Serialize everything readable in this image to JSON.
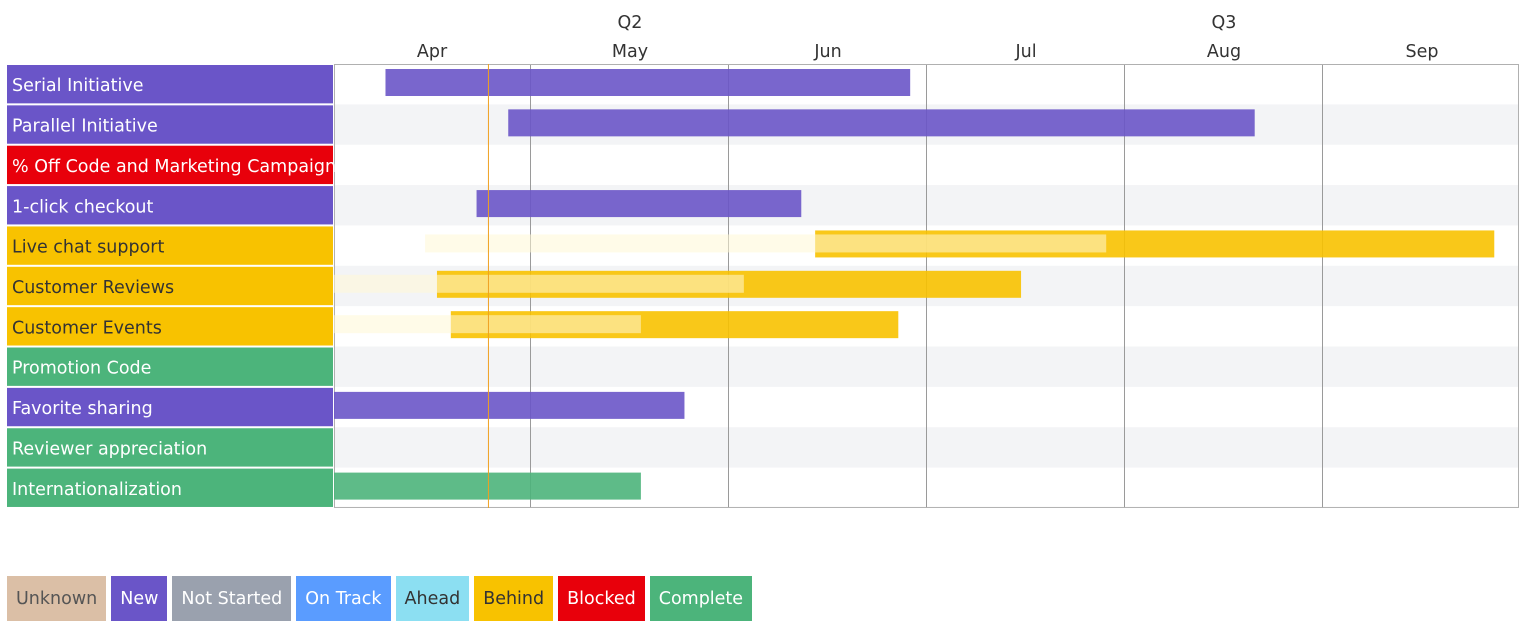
{
  "roadmap": {
    "quarters": [
      {
        "label": "Q2",
        "month_index": 1
      },
      {
        "label": "Q3",
        "month_index": 4
      }
    ],
    "months": [
      "Apr",
      "May",
      "Jun",
      "Jul",
      "Aug",
      "Sep"
    ],
    "today_month_offset": 0.78,
    "status_colors": {
      "New": "#6a55c8",
      "Blocked": "#e8000b",
      "Behind": "#f8c200",
      "Complete": "#4cb47b"
    },
    "rows": [
      {
        "title": "Serial Initiative",
        "status": "New",
        "bars": [
          {
            "start": 0.26,
            "end": 2.91,
            "kind": "solid"
          }
        ]
      },
      {
        "title": "Parallel Initiative",
        "status": "New",
        "bars": [
          {
            "start": 0.88,
            "end": 4.65,
            "kind": "solid"
          }
        ]
      },
      {
        "title": "% Off Code and Marketing Campaign",
        "status": "Blocked",
        "bars": []
      },
      {
        "title": "1-click checkout",
        "status": "New",
        "bars": [
          {
            "start": 0.72,
            "end": 2.36,
            "kind": "solid"
          }
        ]
      },
      {
        "title": "Live chat support",
        "status": "Behind",
        "bars": [
          {
            "start": 2.43,
            "end": 5.86,
            "kind": "solid"
          },
          {
            "start": 0.46,
            "end": 3.9,
            "kind": "planned"
          }
        ]
      },
      {
        "title": "Customer Reviews",
        "status": "Behind",
        "bars": [
          {
            "start": 0.52,
            "end": 3.47,
            "kind": "solid"
          },
          {
            "start": 0.0,
            "end": 2.07,
            "kind": "planned"
          }
        ]
      },
      {
        "title": "Customer Events",
        "status": "Behind",
        "bars": [
          {
            "start": 0.59,
            "end": 2.85,
            "kind": "solid"
          },
          {
            "start": 0.0,
            "end": 1.55,
            "kind": "planned"
          }
        ]
      },
      {
        "title": "Promotion Code",
        "status": "Complete",
        "bars": []
      },
      {
        "title": "Favorite sharing",
        "status": "New",
        "bars": [
          {
            "start": 0.0,
            "end": 1.77,
            "kind": "solid"
          }
        ]
      },
      {
        "title": "Reviewer appreciation",
        "status": "Complete",
        "bars": []
      },
      {
        "title": "Internationalization",
        "status": "Complete",
        "bars": [
          {
            "start": 0.0,
            "end": 1.55,
            "kind": "solid"
          }
        ]
      }
    ]
  },
  "legend": [
    {
      "label": "Unknown",
      "bg": "#dbbfa6",
      "fg": "#555555"
    },
    {
      "label": "New",
      "bg": "#6a55c8",
      "fg": "#ffffff"
    },
    {
      "label": "Not Started",
      "bg": "#9aa1ae",
      "fg": "#ffffff"
    },
    {
      "label": "On Track",
      "bg": "#5a9cff",
      "fg": "#ffffff"
    },
    {
      "label": "Ahead",
      "bg": "#8cdff2",
      "fg": "#333333"
    },
    {
      "label": "Behind",
      "bg": "#f8c200",
      "fg": "#333333"
    },
    {
      "label": "Blocked",
      "bg": "#e8000b",
      "fg": "#ffffff"
    },
    {
      "label": "Complete",
      "bg": "#4cb47b",
      "fg": "#ffffff"
    }
  ]
}
